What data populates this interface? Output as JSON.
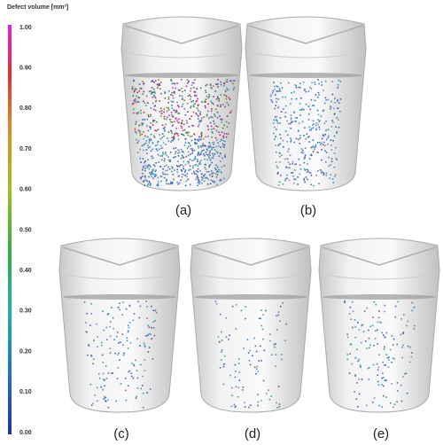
{
  "colorbar": {
    "title": "Defect volume [mm³]",
    "ticks": [
      "1.00",
      "0.90",
      "0.80",
      "0.70",
      "0.60",
      "0.50",
      "0.40",
      "0.30",
      "0.20",
      "0.10",
      "0.00"
    ]
  },
  "panels": [
    {
      "label": "(a)"
    },
    {
      "label": "(b)"
    },
    {
      "label": "(c)"
    },
    {
      "label": "(d)"
    },
    {
      "label": "(e)"
    }
  ]
}
